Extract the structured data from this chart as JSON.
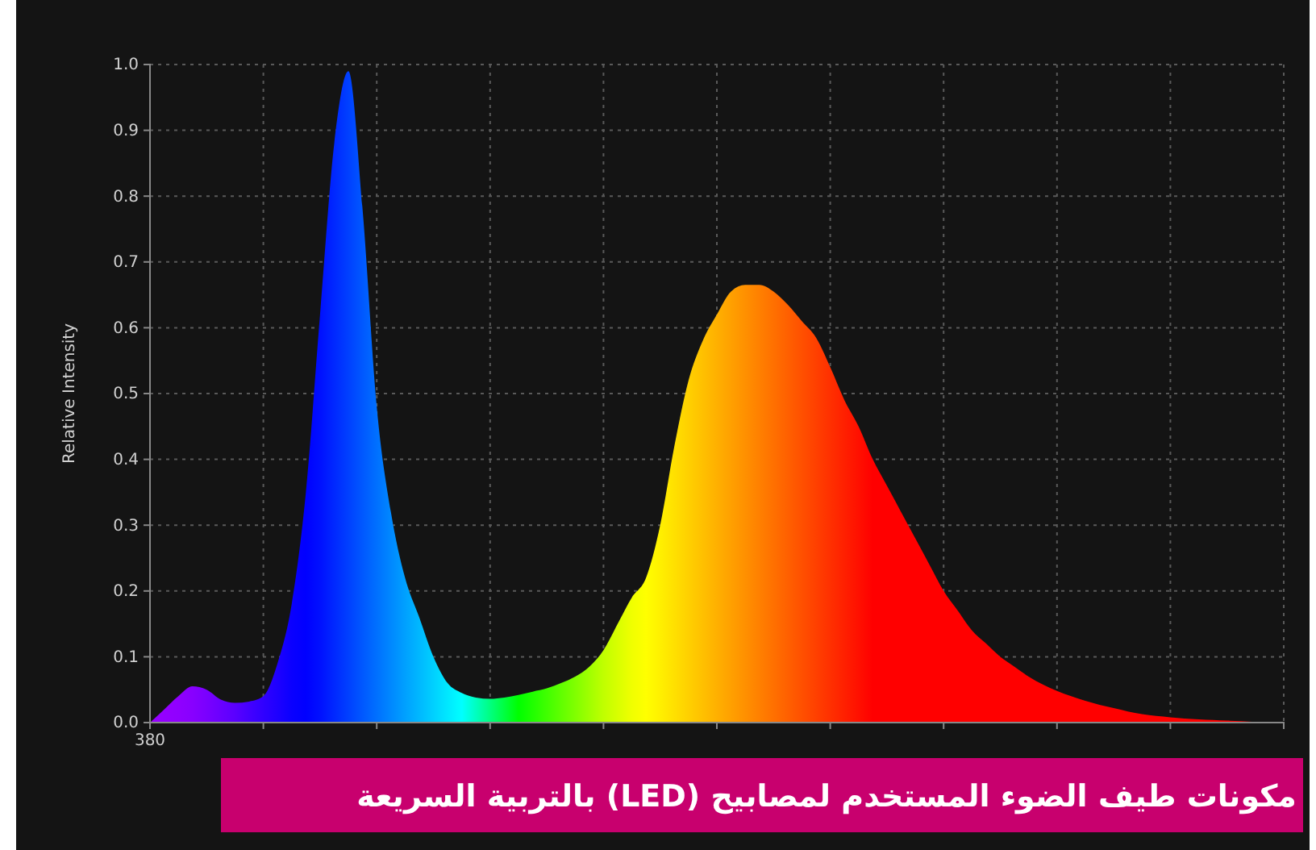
{
  "chart_data": {
    "type": "area",
    "title": "مكونات طيف الضوء المستخدم لمصابيح (LED) بالتربية السريعة",
    "ylabel": "Relative Intensity",
    "categories": [
      "380",
      null,
      null,
      null,
      null,
      null,
      null,
      null,
      null,
      null,
      null,
      null,
      null,
      null,
      null,
      null,
      null,
      null,
      null,
      null,
      null,
      null,
      null,
      null,
      null,
      null,
      null,
      null,
      null,
      null,
      null,
      null,
      null,
      null,
      null,
      null,
      null,
      null,
      null,
      null,
      null,
      null,
      null,
      null,
      null,
      null,
      null,
      null,
      null,
      null,
      null,
      null,
      null,
      null,
      null,
      null,
      null,
      null,
      null,
      null,
      null,
      null,
      null,
      null,
      null,
      null,
      null,
      null,
      null,
      null,
      null,
      null,
      null,
      null,
      null,
      null,
      null,
      null,
      null,
      null,
      null
    ],
    "values": [
      0,
      0.02,
      0.04,
      0.055,
      0.05,
      0.035,
      0.03,
      0.032,
      0.04,
      0.09,
      0.18,
      0.35,
      0.62,
      0.88,
      0.99,
      0.78,
      0.48,
      0.32,
      0.22,
      0.16,
      0.1,
      0.06,
      0.045,
      0.038,
      0.036,
      0.038,
      0.042,
      0.047,
      0.052,
      0.06,
      0.07,
      0.085,
      0.11,
      0.15,
      0.19,
      0.22,
      0.3,
      0.42,
      0.52,
      0.58,
      0.62,
      0.655,
      0.665,
      0.665,
      0.655,
      0.635,
      0.61,
      0.585,
      0.54,
      0.49,
      0.45,
      0.4,
      0.36,
      0.32,
      0.28,
      0.24,
      0.2,
      0.17,
      0.14,
      0.12,
      0.1,
      0.085,
      0.07,
      0.058,
      0.048,
      0.04,
      0.033,
      0.027,
      0.022,
      0.017,
      0.013,
      0.01,
      0.008,
      0.006,
      0.005,
      0.004,
      0.003,
      0.002,
      0.001,
      0.001,
      0
    ],
    "colors": [
      "#9900ff",
      "#9400ff",
      "#9000ff",
      "#8800ff",
      "#7a00ff",
      "#6a00ff",
      "#5a00ff",
      "#4400ff",
      "#3000ff",
      "#1e00ff",
      "#0a00ff",
      "#0000ff",
      "#0010ff",
      "#0028ff",
      "#0040ff",
      "#0058ff",
      "#0070ff",
      "#0088ff",
      "#00a0ff",
      "#00b8ff",
      "#00d0ff",
      "#00e8ff",
      "#00ffff",
      "#00ffc0",
      "#00ff80",
      "#00ff40",
      "#00ff00",
      "#20ff00",
      "#40ff00",
      "#60ff00",
      "#80ff00",
      "#a0ff00",
      "#c0ff00",
      "#d8ff00",
      "#f0ff00",
      "#ffff00",
      "#fff000",
      "#ffe000",
      "#ffd000",
      "#ffc000",
      "#ffb000",
      "#ffa000",
      "#ff9000",
      "#ff8000",
      "#ff7000",
      "#ff6000",
      "#ff5000",
      "#ff4000",
      "#ff3000",
      "#ff2000",
      "#ff1000",
      "#ff0000",
      "#ff0000",
      "#ff0000",
      "#ff0000",
      "#ff0000",
      "#ff0000",
      "#ff0000",
      "#ff0000",
      "#ff0000",
      "#ff0000",
      "#ff0000",
      "#ff0000",
      "#ff0000",
      "#ff0000",
      "#ff0000",
      "#ff0000",
      "#ff0000",
      "#ff0000",
      "#ff0000",
      "#ff0000",
      "#ff0000",
      "#ff0000",
      "#ff0000",
      "#ff0000",
      "#ff0000",
      "#ff0000",
      "#ff0000",
      "#ff0000",
      "#ff0000",
      "#ff0000"
    ],
    "ylim": [
      0,
      1
    ],
    "yticks": [
      {
        "value": 0,
        "label": "0.0"
      },
      0.1,
      0.2,
      0.3,
      0.4,
      0.5,
      0.6,
      0.7,
      0.8,
      0.9,
      {
        "value": 1,
        "label": "1.0"
      }
    ],
    "grid": true
  }
}
